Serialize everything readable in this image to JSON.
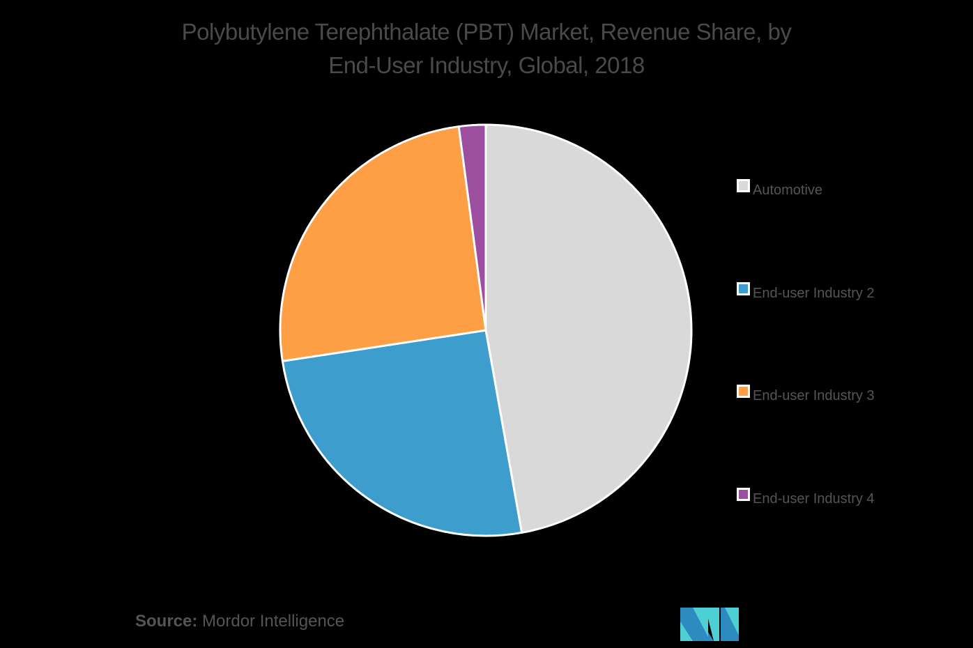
{
  "title": {
    "line1": "Polybutylene Terephthalate (PBT) Market, Revenue Share, by",
    "line2": "End-User Industry, Global, 2018"
  },
  "legend": {
    "items": [
      {
        "label": "Automotive",
        "color": "#d9d9d9"
      },
      {
        "label": "End-user Industry 2",
        "color": "#3d9dcd"
      },
      {
        "label": "End-user Industry 3",
        "color": "#fe9f45"
      },
      {
        "label": "End-user Industry 4",
        "color": "#9b4f9e"
      }
    ]
  },
  "source": {
    "prefix": "Source:",
    "text": "Mordor Intelligence"
  },
  "logo": {
    "name": "mordor-intelligence-logo",
    "colors": [
      "#2e8bc0",
      "#4ecfd4"
    ]
  },
  "chart_data": {
    "type": "pie",
    "title": "Polybutylene Terephthalate (PBT) Market, Revenue Share, by End-User Industry, Global, 2018",
    "categories": [
      "Automotive",
      "End-user Industry 2",
      "End-user Industry 3",
      "End-user Industry 4"
    ],
    "values": [
      47.2,
      25.4,
      25.3,
      2.1
    ],
    "unit": "%",
    "colors": [
      "#d9d9d9",
      "#3d9dcd",
      "#fe9f45",
      "#9b4f9e"
    ],
    "start_angle": "12 o'clock, clockwise",
    "legend_position": "right",
    "data_labels": false,
    "source": "Mordor Intelligence"
  }
}
